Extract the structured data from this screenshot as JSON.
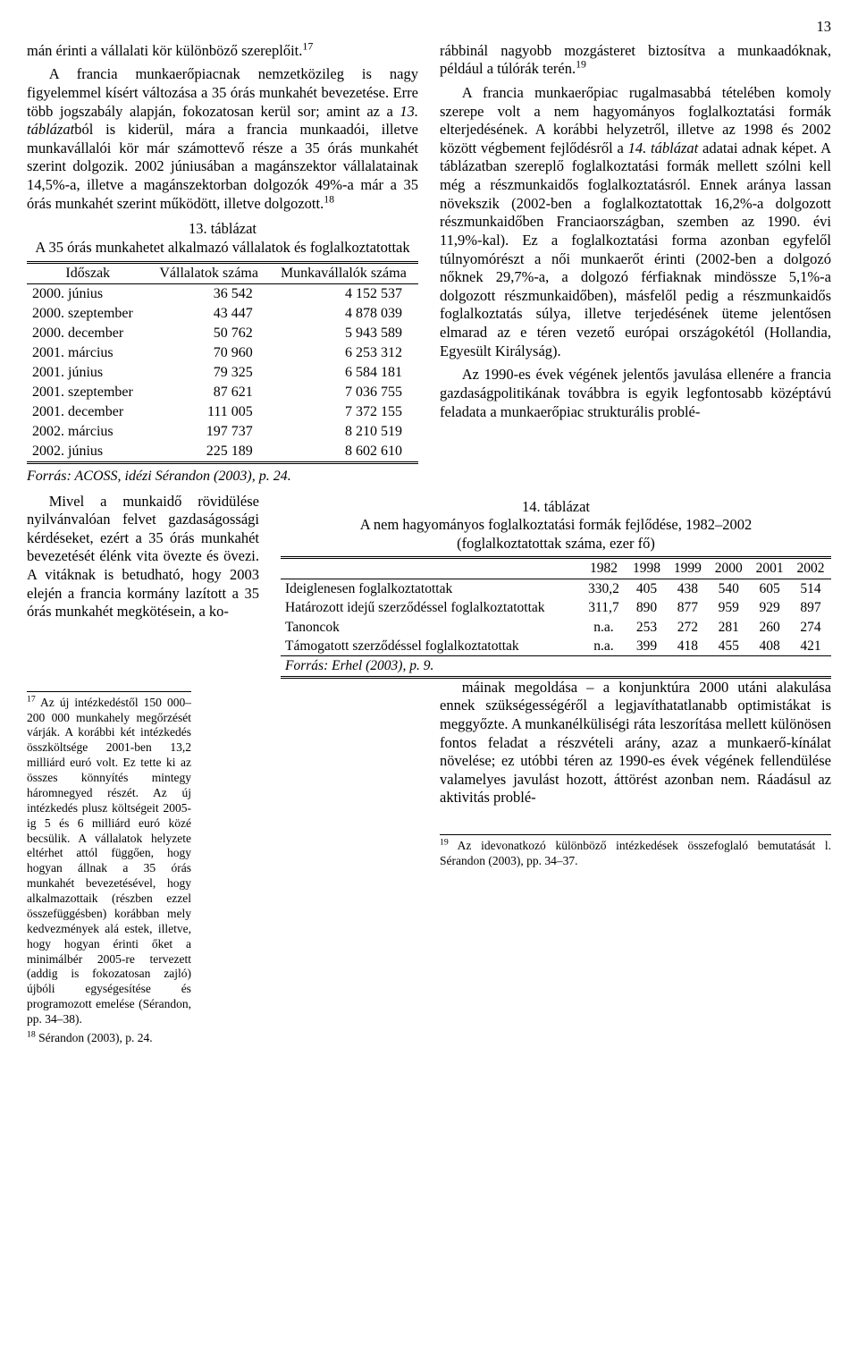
{
  "page_number": "13",
  "left": {
    "p1": "mán érinti a vállalati kör különböző szereplőit.",
    "fn17": "17",
    "p2a": "A francia munkaerőpiacnak nemzetközileg is nagy figyelemmel kísért változása a 35 órás munkahét bevezetése. Erre több jogszabály alapján, fokozatosan kerül sor; amint az a ",
    "p2i": "13. táblázat",
    "p2b": "ból is kiderül, mára a francia munkaadói, illetve munkavállalói kör már számottevő része a 35 órás munkahét szerint dolgozik. 2002 júniusában a magánszektor vállalatainak 14,5%-a, illetve a magánszektorban dolgozók 49%-a már a 35 órás munkahét szerint működött, illetve dolgozott.",
    "fn18": "18",
    "t13": {
      "caption": "13. táblázat",
      "title": "A 35 órás munkahetet alkalmazó vállalatok és foglalkoztatottak",
      "col0": "Időszak",
      "col1": "Vállalatok száma",
      "col2": "Munkavállalók száma",
      "rows": [
        [
          "2000. június",
          "36 542",
          "4 152 537"
        ],
        [
          "2000. szeptember",
          "43 447",
          "4 878 039"
        ],
        [
          "2000. december",
          "50 762",
          "5 943 589"
        ],
        [
          "2001. március",
          "70 960",
          "6 253 312"
        ],
        [
          "2001. június",
          "79 325",
          "6 584 181"
        ],
        [
          "2001. szeptember",
          "87 621",
          "7 036 755"
        ],
        [
          "2001. december",
          "111 005",
          "7 372 155"
        ],
        [
          "2002. március",
          "197 737",
          "8 210 519"
        ],
        [
          "2002. június",
          "225 189",
          "8 602 610"
        ]
      ],
      "source": "Forrás: ACOSS, idézi Sérandon (2003), p. 24."
    },
    "p3": "Mivel a munkaidő rövidülése nyilvánvalóan felvet gazdaságossági kérdéseket, ezért a 35 órás munkahét bevezetését élénk vita övezte és övezi. A vitáknak is betudható, hogy 2003 elején a francia kormány lazított a 35 órás munkahét megkötésein, a ko-"
  },
  "right": {
    "p1": "rábbinál nagyobb mozgásteret biztosítva a munkaadóknak, például a túlórák terén.",
    "fn19": "19",
    "p2a": "A francia munkaerőpiac rugalmasabbá tételében komoly szerepe volt a nem hagyományos foglalkoztatási formák elterjedésének. A korábbi helyzetről, illetve az 1998 és 2002 között végbement fejlődésről a ",
    "p2i": "14. táblázat",
    "p2b": " adatai adnak képet. A táblázatban szereplő foglalkoztatási formák mellett szólni kell még a részmunkaidős foglalkoztatásról. Ennek aránya lassan növekszik (2002-ben a foglalkoztatottak 16,2%-a dolgozott részmunkaidőben Franciaországban, szemben az 1990. évi 11,9%-kal). Ez a foglalkoztatási forma azonban egyfelől túlnyomórészt a női munkaerőt érinti (2002-ben a dolgozó nőknek 29,7%-a, a dolgozó férfiaknak mindössze 5,1%-a dolgozott részmunkaidőben), másfelől pedig a részmunkaidős foglalkoztatás súlya, illetve terjedésének üteme jelentősen elmarad az e téren vezető európai országokétól (Hollandia, Egyesült Királyság).",
    "p3": "Az 1990-es évek végének jelentős javulása ellenére a francia gazdaságpolitikának továbbra is egyik legfontosabb középtávú feladata a munkaerőpiac strukturális problé-"
  },
  "t14": {
    "caption": "14. táblázat",
    "title": "A nem hagyományos foglalkoztatási formák fejlődése, 1982–2002",
    "subtitle": "(foglalkoztatottak száma, ezer fő)",
    "cols": [
      "",
      "1982",
      "1998",
      "1999",
      "2000",
      "2001",
      "2002"
    ],
    "rows": [
      [
        "Ideiglenesen foglalkoztatottak",
        "330,2",
        "405",
        "438",
        "540",
        "605",
        "514"
      ],
      [
        "Határozott idejű szerződéssel foglalkoztatottak",
        "311,7",
        "890",
        "877",
        "959",
        "929",
        "897"
      ],
      [
        "Tanoncok",
        "n.a.",
        "253",
        "272",
        "281",
        "260",
        "274"
      ],
      [
        "Támogatott szerződéssel foglalkoztatottak",
        "n.a.",
        "399",
        "418",
        "455",
        "408",
        "421"
      ]
    ],
    "source": "Forrás: Erhel (2003), p. 9."
  },
  "right_bottom": "máinak megoldása – a konjunktúra 2000 utáni alakulása ennek szükségességéről a legjavíthatatlanabb optimistákat is meggyőzte. A munkanélküliségi ráta leszorítása mellett különösen fontos feladat a részvételi arány, azaz a munkaerő-kínálat növelése; ez utóbbi téren az 1990-es évek végének fellendülése valamelyes javulást hozott, áttörést azonban nem. Ráadásul az aktivitás problé-",
  "footnotes": {
    "f17": " Az új intézkedéstől 150 000–200 000 munkahely megőrzését várják. A korábbi két intézkedés összköltsége 2001-ben 13,2 milliárd euró volt. Ez tette ki az összes könnyítés mintegy háromnegyed részét. Az új intézkedés plusz költségeit 2005-ig 5 és 6 milliárd euró közé becsülik. A vállalatok helyzete eltérhet attól függően, hogy hogyan állnak a 35 órás munkahét bevezetésével, hogy alkalmazottaik (részben ezzel összefüggésben) korábban mely kedvezmények alá estek, illetve, hogy hogyan érinti őket a minimálbér 2005-re tervezett (addig is fokozatosan zajló) újbóli egységesítése és programozott emelése (Sérandon, pp. 34–38).",
    "f18": " Sérandon (2003), p. 24.",
    "f19": " Az idevonatkozó különböző intézkedések összefoglaló bemutatását l. Sérandon (2003), pp. 34–37."
  }
}
